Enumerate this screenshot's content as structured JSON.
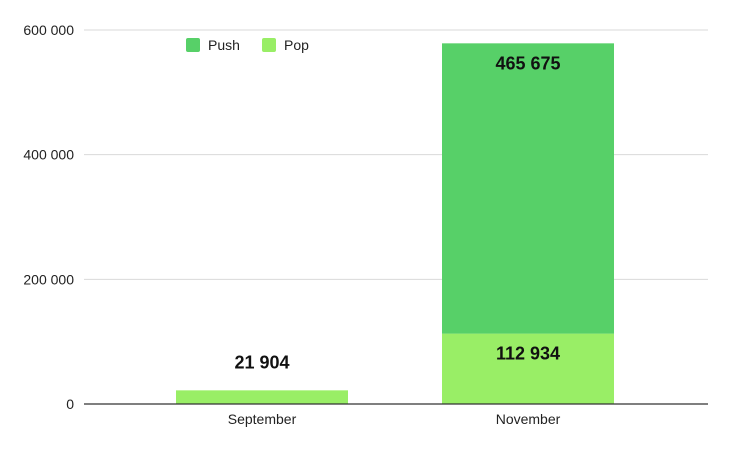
{
  "chart_data": {
    "type": "bar",
    "stacked": true,
    "categories": [
      "September",
      "November"
    ],
    "series": [
      {
        "name": "Pop",
        "values": [
          21904,
          112934
        ],
        "color": "#99ee66"
      },
      {
        "name": "Push",
        "values": [
          0,
          465675
        ],
        "color": "#57d068"
      }
    ],
    "data_labels": [
      [
        "21 904",
        "112 934"
      ],
      [
        "",
        "465 675"
      ]
    ],
    "y_ticks": [
      0,
      200000,
      400000,
      600000
    ],
    "y_tick_labels": [
      "0",
      "200 000",
      "400 000",
      "600 000"
    ],
    "ylim": [
      0,
      600000
    ],
    "legend": {
      "position": "top-left",
      "items": [
        {
          "label": "Push",
          "color": "#57d068"
        },
        {
          "label": "Pop",
          "color": "#99ee66"
        }
      ]
    },
    "grid": true,
    "title": "",
    "xlabel": "",
    "ylabel": ""
  }
}
